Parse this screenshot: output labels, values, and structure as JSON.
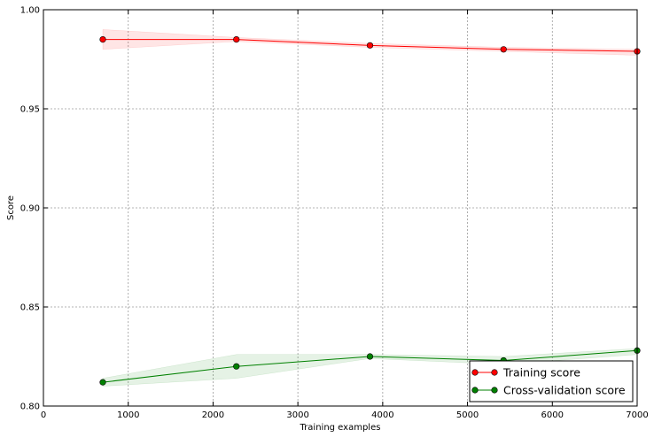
{
  "chart_data": {
    "type": "line",
    "title": "",
    "xlabel": "Training examples",
    "ylabel": "Score",
    "xlim": [
      0,
      7000
    ],
    "ylim": [
      0.8,
      1.0
    ],
    "xticks": [
      0,
      1000,
      2000,
      3000,
      4000,
      5000,
      6000,
      7000
    ],
    "xtick_labels": [
      "0",
      "1000",
      "2000",
      "3000",
      "4000",
      "5000",
      "6000",
      "7000"
    ],
    "yticks": [
      0.8,
      0.85,
      0.9,
      0.95,
      1.0
    ],
    "ytick_labels": [
      "0.80",
      "0.85",
      "0.90",
      "0.95",
      "1.00"
    ],
    "grid": true,
    "legend_position": "lower-right",
    "series": [
      {
        "name": "Training score",
        "color": "#ff0000",
        "marker": "circle",
        "x": [
          700,
          2275,
          3850,
          5425,
          7000
        ],
        "y": [
          0.985,
          0.985,
          0.982,
          0.98,
          0.979
        ],
        "band_upper": [
          0.99,
          0.986,
          0.983,
          0.981,
          0.98
        ],
        "band_lower": [
          0.98,
          0.984,
          0.981,
          0.979,
          0.977
        ]
      },
      {
        "name": "Cross-validation score",
        "color": "#008000",
        "marker": "circle",
        "x": [
          700,
          2275,
          3850,
          5425,
          7000
        ],
        "y": [
          0.812,
          0.82,
          0.825,
          0.823,
          0.828
        ],
        "band_upper": [
          0.814,
          0.826,
          0.826,
          0.825,
          0.829
        ],
        "band_lower": [
          0.81,
          0.814,
          0.824,
          0.821,
          0.826
        ]
      }
    ]
  }
}
